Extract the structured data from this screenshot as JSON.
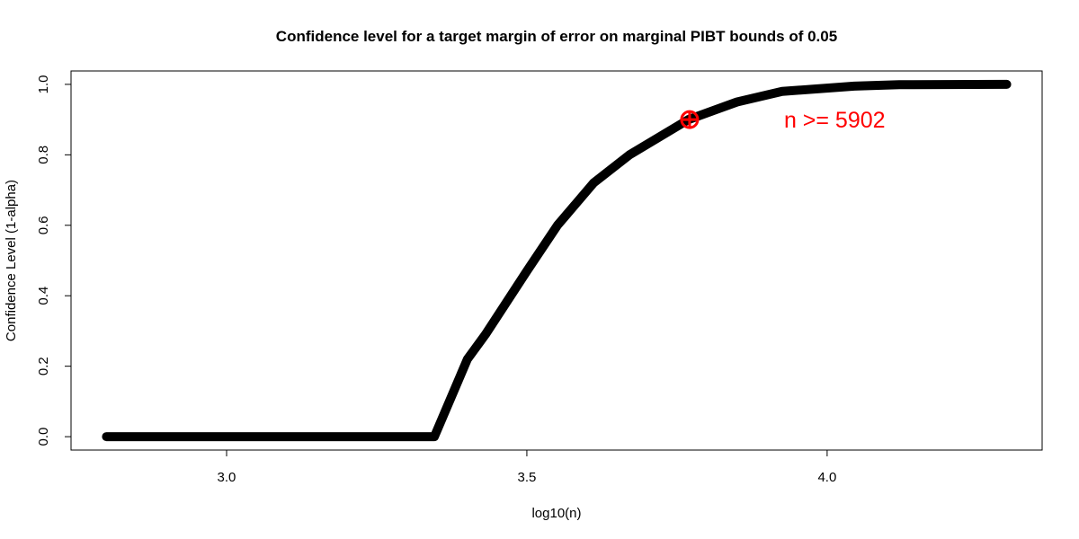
{
  "chart_data": {
    "type": "line",
    "title": "Confidence level for a target margin of error on marginal PIBT bounds of 0.05",
    "x_label": "log10(n)",
    "y_label": "Confidence Level (1-alpha)",
    "x": [
      2.8,
      3.0,
      3.2,
      3.346,
      3.401,
      3.431,
      3.5,
      3.551,
      3.611,
      3.671,
      3.769,
      3.85,
      3.925,
      4.045,
      4.12,
      4.299
    ],
    "series": [
      {
        "color": "#000000",
        "values": [
          0,
          0,
          0,
          0,
          0.22,
          0.29,
          0.47,
          0.6,
          0.72,
          0.8,
          0.9,
          0.95,
          0.98,
          0.995,
          0.999,
          1.0
        ]
      }
    ],
    "highlight": {
      "x": 3.771,
      "y": 0.9,
      "color": "#ff0000",
      "label": "n >= 5902"
    },
    "xlim": [
      2.741,
      4.358
    ],
    "ylim": [
      -0.038,
      1.038
    ],
    "xticks": [
      {
        "value": 3.0,
        "label": "3.0"
      },
      {
        "value": 3.5,
        "label": "3.5"
      },
      {
        "value": 4.0,
        "label": "4.0"
      }
    ],
    "yticks": [
      {
        "value": 0,
        "label": "0.0"
      },
      {
        "value": 0.2,
        "label": "0.2"
      },
      {
        "value": 0.4,
        "label": "0.4"
      },
      {
        "value": 0.6,
        "label": "0.6"
      },
      {
        "value": 0.8,
        "label": "0.8"
      },
      {
        "value": 1.0,
        "label": "1.0"
      }
    ]
  }
}
